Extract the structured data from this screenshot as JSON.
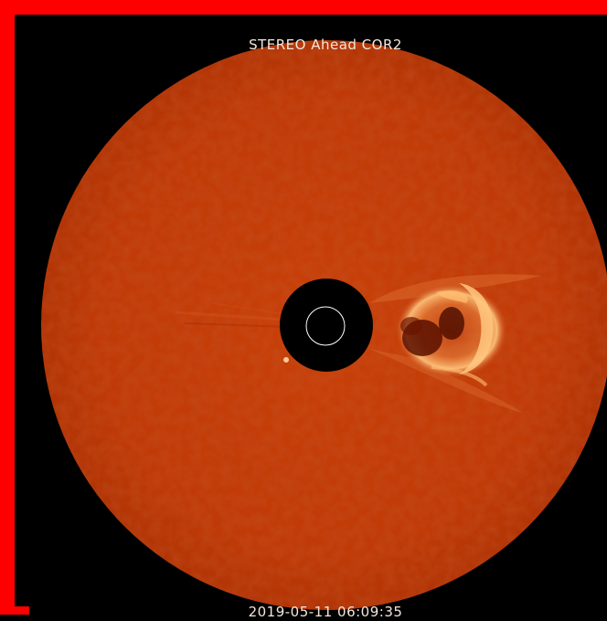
{
  "image": {
    "instrument_label": "STEREO Ahead COR2",
    "timestamp": "2019-05-11 06:09:35"
  },
  "colors": {
    "frame": "#ff0000",
    "background": "#000000",
    "corona": "#c23a08",
    "corona_dark": "#9e2a06",
    "cme_bright": "#ffbf73",
    "label_text": "#f4e6dc"
  }
}
